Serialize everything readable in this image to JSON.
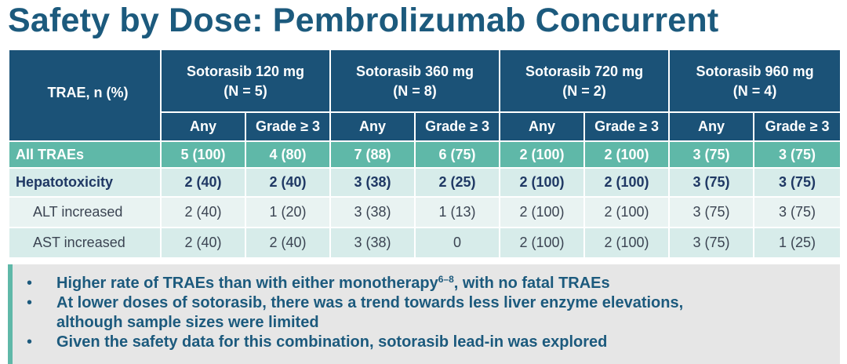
{
  "title": "Safety by Dose: Pembrolizumab Concurrent",
  "table": {
    "corner_label": "TRAE, n (%)",
    "doses": [
      {
        "line1": "Sotorasib 120 mg",
        "line2": "(N = 5)"
      },
      {
        "line1": "Sotorasib 360 mg",
        "line2": "(N = 8)"
      },
      {
        "line1": "Sotorasib 720 mg",
        "line2": "(N = 2)"
      },
      {
        "line1": "Sotorasib 960 mg",
        "line2": "(N = 4)"
      }
    ],
    "subheaders": [
      "Any",
      "Grade ≥ 3",
      "Any",
      "Grade ≥ 3",
      "Any",
      "Grade ≥ 3",
      "Any",
      "Grade ≥ 3"
    ],
    "rows": [
      {
        "label": "All TRAEs",
        "values": [
          "5 (100)",
          "4 (80)",
          "7 (88)",
          "6 (75)",
          "2 (100)",
          "2 (100)",
          "3 (75)",
          "3 (75)"
        ]
      },
      {
        "label": "Hepatotoxicity",
        "values": [
          "2 (40)",
          "2 (40)",
          "3 (38)",
          "2 (25)",
          "2 (100)",
          "2 (100)",
          "3 (75)",
          "3 (75)"
        ]
      },
      {
        "label": "ALT increased",
        "values": [
          "2 (40)",
          "1 (20)",
          "3 (38)",
          "1 (13)",
          "2 (100)",
          "2 (100)",
          "3 (75)",
          "3 (75)"
        ]
      },
      {
        "label": "AST increased",
        "values": [
          "2 (40)",
          "2 (40)",
          "3 (38)",
          "0",
          "2 (100)",
          "2 (100)",
          "3 (75)",
          "1 (25)"
        ]
      }
    ]
  },
  "bullets": {
    "marker": "•",
    "b1_text": "Higher rate of TRAEs than with either monotherapy",
    "b1_sup": "6–8",
    "b1_tail": ", with no fatal TRAEs",
    "b2_line1": "At lower doses of sotorasib, there was a trend towards less liver enzyme elevations,",
    "b2_line2": "although sample sizes were limited",
    "b3_text": "Given the safety data for this combination, sotorasib lead-in was explored"
  },
  "colors": {
    "header_bg": "#1b5277",
    "accent_teal": "#5fb8a8",
    "row_light": "#d7ecea",
    "title": "#1c5a7d"
  }
}
